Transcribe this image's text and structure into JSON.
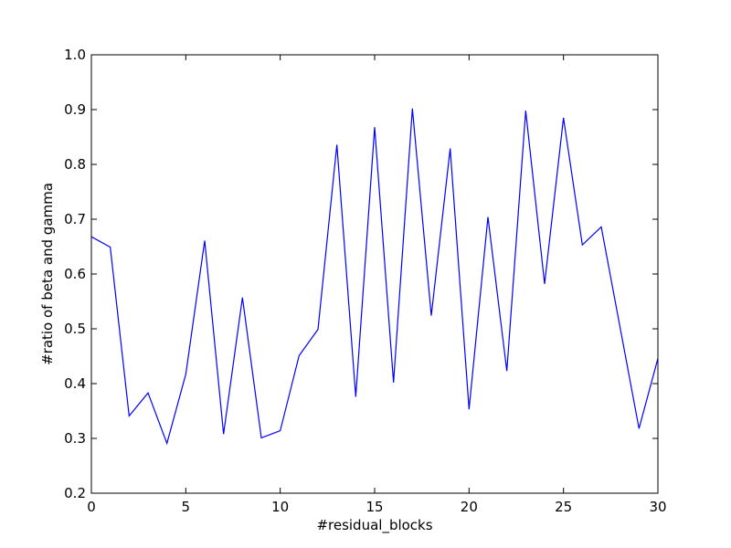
{
  "chart_data": {
    "type": "line",
    "title": "",
    "xlabel": "#residual_blocks",
    "ylabel": "#ratio of beta and gamma",
    "xlim": [
      0,
      30
    ],
    "ylim": [
      0.2,
      1.0
    ],
    "xticks": [
      0,
      5,
      10,
      15,
      20,
      25,
      30
    ],
    "xtick_labels": [
      "0",
      "5",
      "10",
      "15",
      "20",
      "25",
      "30"
    ],
    "yticks": [
      0.2,
      0.3,
      0.4,
      0.5,
      0.6,
      0.7,
      0.8,
      0.9,
      1.0
    ],
    "ytick_labels": [
      "0.2",
      "0.3",
      "0.4",
      "0.5",
      "0.6",
      "0.7",
      "0.8",
      "0.9",
      "1.0"
    ],
    "grid": false,
    "legend": "none",
    "series": [
      {
        "color": "#0000ff",
        "x": [
          0,
          1,
          2,
          3,
          4,
          5,
          6,
          7,
          8,
          9,
          10,
          11,
          12,
          13,
          14,
          15,
          16,
          17,
          18,
          19,
          20,
          21,
          22,
          23,
          24,
          25,
          26,
          27,
          28,
          29,
          30
        ],
        "y": [
          0.668,
          0.649,
          0.341,
          0.383,
          0.291,
          0.417,
          0.661,
          0.308,
          0.557,
          0.301,
          0.314,
          0.451,
          0.499,
          0.836,
          0.376,
          0.868,
          0.402,
          0.902,
          0.524,
          0.829,
          0.353,
          0.704,
          0.423,
          0.898,
          0.582,
          0.885,
          0.653,
          0.686,
          0.502,
          0.318,
          0.446
        ]
      }
    ]
  }
}
